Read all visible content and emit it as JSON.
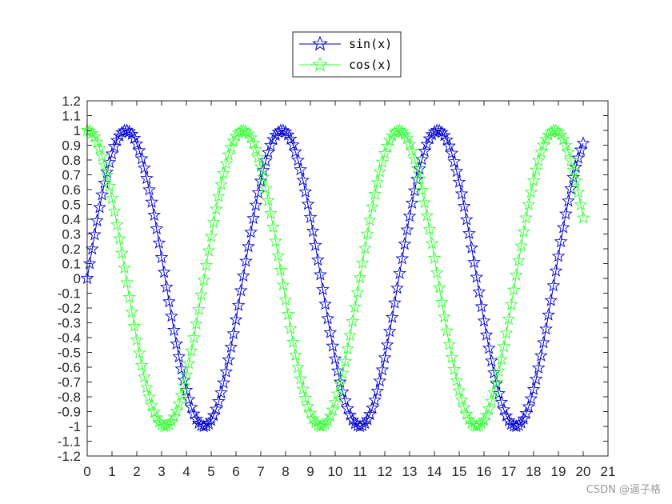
{
  "chart_data": {
    "type": "line",
    "title": "",
    "xlabel": "",
    "ylabel": "",
    "xlim": [
      0,
      21
    ],
    "ylim": [
      -1.2,
      1.2
    ],
    "xticks": [
      0,
      1,
      2,
      3,
      4,
      5,
      6,
      7,
      8,
      9,
      10,
      11,
      12,
      13,
      14,
      15,
      16,
      17,
      18,
      19,
      20,
      21
    ],
    "yticks": [
      1.2,
      1.1,
      1,
      0.9,
      0.8,
      0.7,
      0.6,
      0.5,
      0.4,
      0.3,
      0.2,
      0.1,
      0,
      -0.1,
      -0.2,
      -0.3,
      -0.4,
      -0.5,
      -0.6,
      -0.7,
      -0.8,
      -0.9,
      -1,
      -1.1,
      -1.2
    ],
    "ytick_labels": [
      "1.2",
      "1.1",
      "1",
      "0.9",
      "0.8",
      "0.7",
      "0.6",
      "0.5",
      "0.4",
      "0.3",
      "0.2",
      "0.1",
      "0",
      "-0.1",
      "-0.2",
      "-0.3",
      "-0.4",
      "-0.5",
      "-0.6",
      "-0.7",
      "-0.8",
      "-0.9",
      "-1",
      "-1.1",
      "-1.2"
    ],
    "grid": false,
    "legend_placement": "top-center-outside",
    "x_range": [
      0,
      20
    ],
    "x_step": 0.1,
    "series": [
      {
        "name": "sin(x)",
        "function": "sin",
        "color": "#0000cc",
        "marker": "star"
      },
      {
        "name": "cos(x)",
        "function": "cos",
        "color": "#33ff33",
        "marker": "star"
      }
    ]
  },
  "watermark": "CSDN @逼子格"
}
